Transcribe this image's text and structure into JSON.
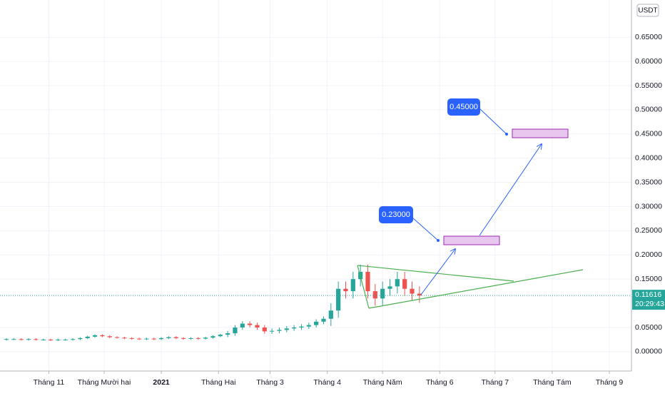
{
  "chart_data": {
    "type": "candlestick",
    "currency": "USDT",
    "x": [
      8,
      12,
      16,
      20,
      24,
      28,
      32,
      36,
      40,
      44,
      48,
      52,
      56,
      60,
      64,
      68,
      72,
      76,
      80,
      84,
      88,
      92,
      96,
      100,
      104,
      108,
      112,
      116,
      120,
      124,
      128,
      132,
      136,
      140,
      144,
      148,
      152,
      156,
      160,
      164,
      168,
      172,
      176,
      180,
      184,
      188,
      192,
      196,
      200,
      204,
      208,
      212,
      216,
      220,
      224,
      228,
      232
    ],
    "open": [
      0.025,
      0.026,
      0.026,
      0.025,
      0.026,
      0.025,
      0.025,
      0.024,
      0.025,
      0.025,
      0.026,
      0.028,
      0.031,
      0.034,
      0.032,
      0.03,
      0.029,
      0.028,
      0.027,
      0.026,
      0.027,
      0.026,
      0.028,
      0.03,
      0.028,
      0.027,
      0.028,
      0.027,
      0.029,
      0.032,
      0.035,
      0.038,
      0.05,
      0.058,
      0.055,
      0.05,
      0.042,
      0.043,
      0.045,
      0.048,
      0.05,
      0.052,
      0.055,
      0.062,
      0.068,
      0.085,
      0.13,
      0.125,
      0.15,
      0.165,
      0.125,
      0.11,
      0.13,
      0.135,
      0.15,
      0.13,
      0.12
    ],
    "high": [
      0.028,
      0.028,
      0.028,
      0.028,
      0.028,
      0.027,
      0.027,
      0.027,
      0.027,
      0.028,
      0.03,
      0.033,
      0.036,
      0.036,
      0.034,
      0.032,
      0.031,
      0.03,
      0.029,
      0.029,
      0.029,
      0.03,
      0.032,
      0.032,
      0.03,
      0.03,
      0.03,
      0.031,
      0.034,
      0.037,
      0.043,
      0.055,
      0.063,
      0.063,
      0.06,
      0.055,
      0.048,
      0.05,
      0.053,
      0.055,
      0.057,
      0.06,
      0.067,
      0.073,
      0.1,
      0.145,
      0.145,
      0.165,
      0.18,
      0.18,
      0.14,
      0.145,
      0.15,
      0.165,
      0.165,
      0.145,
      0.135
    ],
    "low": [
      0.023,
      0.024,
      0.023,
      0.023,
      0.023,
      0.023,
      0.022,
      0.022,
      0.023,
      0.023,
      0.024,
      0.026,
      0.029,
      0.03,
      0.028,
      0.027,
      0.026,
      0.025,
      0.024,
      0.024,
      0.024,
      0.024,
      0.026,
      0.026,
      0.025,
      0.025,
      0.025,
      0.025,
      0.027,
      0.03,
      0.03,
      0.033,
      0.045,
      0.05,
      0.045,
      0.037,
      0.037,
      0.038,
      0.04,
      0.043,
      0.045,
      0.047,
      0.05,
      0.057,
      0.053,
      0.07,
      0.11,
      0.11,
      0.135,
      0.11,
      0.095,
      0.095,
      0.115,
      0.12,
      0.115,
      0.105,
      0.101
    ],
    "close": [
      0.026,
      0.026,
      0.025,
      0.026,
      0.025,
      0.025,
      0.024,
      0.025,
      0.025,
      0.026,
      0.028,
      0.031,
      0.034,
      0.032,
      0.03,
      0.029,
      0.028,
      0.027,
      0.026,
      0.027,
      0.026,
      0.028,
      0.03,
      0.028,
      0.027,
      0.028,
      0.027,
      0.029,
      0.032,
      0.035,
      0.038,
      0.05,
      0.058,
      0.055,
      0.05,
      0.042,
      0.043,
      0.045,
      0.048,
      0.05,
      0.052,
      0.055,
      0.062,
      0.068,
      0.085,
      0.13,
      0.125,
      0.15,
      0.165,
      0.125,
      0.11,
      0.13,
      0.135,
      0.15,
      0.13,
      0.12,
      0.116
    ],
    "up_color": "#26a69a",
    "down_color": "#ef5350",
    "xlim": [
      4.5,
      347
    ],
    "ylim": [
      -0.04,
      0.727
    ],
    "xticks": [
      {
        "value": 31,
        "label": "Tháng 11"
      },
      {
        "value": 61,
        "label": "Tháng Mười hai"
      },
      {
        "value": 92,
        "label": "2021"
      },
      {
        "value": 123,
        "label": "Tháng Hai"
      },
      {
        "value": 151,
        "label": "Tháng 3"
      },
      {
        "value": 182,
        "label": "Tháng 4"
      },
      {
        "value": 212,
        "label": "Tháng Năm"
      },
      {
        "value": 243,
        "label": "Tháng 6"
      },
      {
        "value": 273,
        "label": "Tháng 7"
      },
      {
        "value": 304,
        "label": "Tháng Tám"
      },
      {
        "value": 335,
        "label": "Tháng 9"
      }
    ],
    "yticks": [
      {
        "value": 0,
        "label": "0.00000"
      },
      {
        "value": 0.05,
        "label": "0.05000"
      },
      {
        "value": 0.15,
        "label": "0.15000"
      },
      {
        "value": 0.2,
        "label": "0.20000"
      },
      {
        "value": 0.25,
        "label": "0.25000"
      },
      {
        "value": 0.3,
        "label": "0.30000"
      },
      {
        "value": 0.35,
        "label": "0.35000"
      },
      {
        "value": 0.4,
        "label": "0.40000"
      },
      {
        "value": 0.45,
        "label": "0.45000"
      },
      {
        "value": 0.5,
        "label": "0.50000"
      },
      {
        "value": 0.55,
        "label": "0.55000"
      },
      {
        "value": 0.6,
        "label": "0.60000"
      },
      {
        "value": 0.65,
        "label": "0.65000"
      }
    ],
    "grid": true,
    "last_price": {
      "value": 0.11616,
      "label": "0.11616",
      "countdown": "20:29:43"
    },
    "annotations": [
      "0.45000",
      "0.23000"
    ]
  }
}
